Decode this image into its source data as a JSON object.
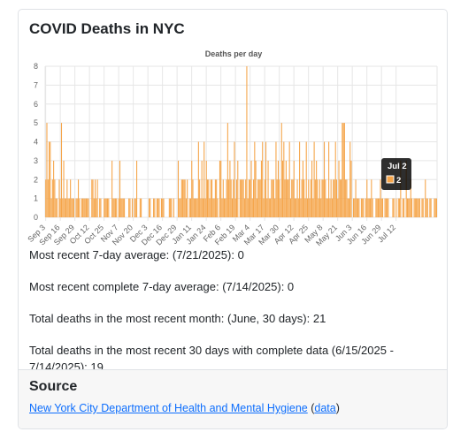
{
  "card": {
    "title": "COVID Deaths in NYC"
  },
  "chart_data": {
    "type": "bar",
    "title": "Deaths per day",
    "xlabel": "",
    "ylabel": "",
    "ylim": [
      0,
      8
    ],
    "y_ticks": [
      0,
      1,
      2,
      3,
      4,
      5,
      6,
      7,
      8
    ],
    "grid": true,
    "bar_color": "#f5a54a",
    "start_date": "2024-09-03",
    "x_tick_labels": [
      "Sep 3",
      "Sep 16",
      "Sep 29",
      "Oct 12",
      "Oct 25",
      "Nov 7",
      "Nov 20",
      "Dec 3",
      "Dec 16",
      "Dec 29",
      "Jan 11",
      "Jan 24",
      "Feb 6",
      "Feb 19",
      "Mar 4",
      "Mar 17",
      "Mar 30",
      "Apr 12",
      "Apr 25",
      "May 8",
      "May 21",
      "Jun 3",
      "Jun 16",
      "Jun 29",
      "Jul 12"
    ],
    "values": [
      2,
      5,
      2,
      4,
      4,
      1,
      2,
      3,
      2,
      1,
      1,
      0,
      2,
      1,
      5,
      1,
      3,
      1,
      1,
      2,
      1,
      1,
      2,
      1,
      1,
      1,
      0,
      1,
      1,
      2,
      1,
      0,
      1,
      1,
      1,
      1,
      1,
      1,
      1,
      0,
      0,
      2,
      2,
      1,
      2,
      1,
      2,
      0,
      1,
      1,
      0,
      0,
      1,
      1,
      1,
      1,
      1,
      0,
      0,
      3,
      1,
      1,
      1,
      1,
      0,
      1,
      3,
      1,
      1,
      1,
      1,
      0,
      0,
      0,
      1,
      1,
      0,
      1,
      0,
      1,
      1,
      3,
      0,
      0,
      1,
      1,
      0,
      0,
      0,
      0,
      0,
      0,
      1,
      1,
      0,
      0,
      1,
      1,
      0,
      1,
      1,
      1,
      0,
      1,
      1,
      1,
      0,
      0,
      0,
      0,
      1,
      1,
      1,
      0,
      1,
      0,
      0,
      0,
      3,
      1,
      1,
      2,
      2,
      2,
      2,
      1,
      2,
      0,
      1,
      1,
      3,
      2,
      1,
      1,
      1,
      1,
      4,
      2,
      1,
      3,
      1,
      4,
      1,
      3,
      2,
      2,
      1,
      2,
      2,
      1,
      1,
      2,
      2,
      1,
      0,
      3,
      3,
      1,
      2,
      1,
      1,
      2,
      5,
      2,
      3,
      2,
      1,
      2,
      4,
      1,
      2,
      3,
      0,
      2,
      2,
      2,
      2,
      1,
      2,
      8,
      1,
      2,
      2,
      3,
      1,
      2,
      4,
      3,
      1,
      2,
      2,
      2,
      3,
      4,
      1,
      2,
      4,
      1,
      3,
      1,
      1,
      2,
      2,
      2,
      1,
      4,
      2,
      3,
      2,
      1,
      5,
      3,
      4,
      2,
      3,
      2,
      2,
      4,
      1,
      2,
      2,
      3,
      1,
      1,
      2,
      1,
      4,
      1,
      2,
      3,
      2,
      1,
      4,
      1,
      2,
      1,
      2,
      3,
      1,
      4,
      2,
      3,
      2,
      1,
      2,
      1,
      2,
      2,
      4,
      2,
      1,
      1,
      4,
      1,
      2,
      1,
      2,
      2,
      4,
      2,
      1,
      3,
      2,
      2,
      5,
      5,
      5,
      2,
      2,
      1,
      1,
      4,
      3,
      0,
      1,
      1,
      2,
      1,
      1,
      1,
      0,
      1,
      1,
      1,
      0,
      1,
      2,
      1,
      1,
      1,
      2,
      1,
      0,
      0,
      1,
      1,
      1,
      1,
      2,
      1,
      1,
      0,
      1,
      1,
      1,
      1,
      0,
      0,
      0,
      1,
      1,
      0,
      1,
      0,
      1,
      1,
      3,
      0,
      1,
      1,
      0,
      3,
      1,
      1,
      1,
      2,
      1,
      0,
      1,
      1,
      1,
      1,
      1,
      1,
      0,
      1,
      1,
      0,
      2,
      1,
      1,
      0,
      1,
      1,
      0,
      0,
      1,
      1,
      1
    ]
  },
  "tooltip": {
    "date": "Jul 2",
    "value": "2",
    "swatch_color": "#f5a54a"
  },
  "stats": {
    "seven_day_avg": "Most recent 7-day average: (7/21/2025): 0",
    "complete_seven_day_avg": "Most recent complete 7-day average: (7/14/2025): 0",
    "month_total": "Total deaths in the most recent month: (June, 30 days): 21",
    "thirty_day_total": "Total deaths in the most recent 30 days with complete data (6/15/2025 - 7/14/2025): 19"
  },
  "source": {
    "title": "Source",
    "link_text": "New York City Department of Health and Mental Hygiene",
    "open_paren": " (",
    "data_link_text": "data",
    "close_paren": ")"
  }
}
